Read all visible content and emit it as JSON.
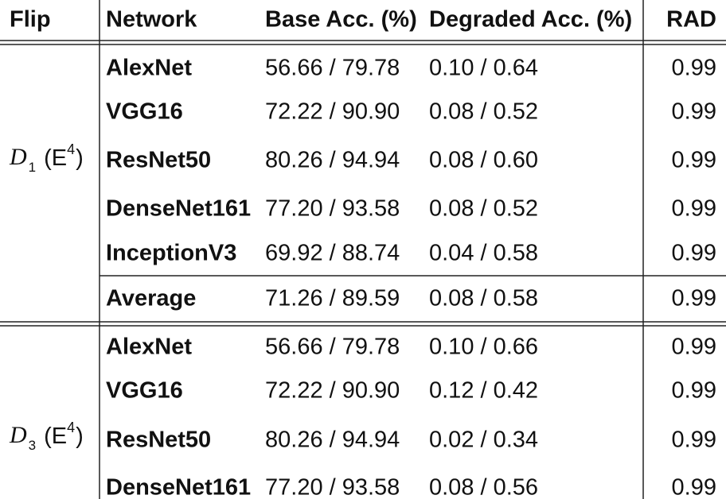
{
  "header": {
    "columns": [
      "Flip",
      "Network",
      "Base Acc. (%)",
      "Degraded Acc. (%)",
      "RAD"
    ]
  },
  "groups": [
    {
      "label": {
        "symbol": "D",
        "index": "1",
        "suffix_open": "(E",
        "suffix_power": "4",
        "suffix_close": ")"
      },
      "rows": [
        {
          "network": "AlexNet",
          "base": "56.66 / 79.78",
          "degraded": "0.10 / 0.64",
          "rad": "0.99"
        },
        {
          "network": "VGG16",
          "base": "72.22 / 90.90",
          "degraded": "0.08 / 0.52",
          "rad": "0.99"
        },
        {
          "network": "ResNet50",
          "base": "80.26 / 94.94",
          "degraded": "0.08 / 0.60",
          "rad": "0.99"
        },
        {
          "network": "DenseNet161",
          "base": "77.20 / 93.58",
          "degraded": "0.08 / 0.52",
          "rad": "0.99"
        },
        {
          "network": "InceptionV3",
          "base": "69.92 / 88.74",
          "degraded": "0.04 / 0.58",
          "rad": "0.99"
        }
      ],
      "average": {
        "network": "Average",
        "base": "71.26 / 89.59",
        "degraded": "0.08 / 0.58",
        "rad": "0.99"
      }
    },
    {
      "label": {
        "symbol": "D",
        "index": "3",
        "suffix_open": "(E",
        "suffix_power": "4",
        "suffix_close": ")"
      },
      "rows": [
        {
          "network": "AlexNet",
          "base": "56.66 / 79.78",
          "degraded": "0.10 / 0.66",
          "rad": "0.99"
        },
        {
          "network": "VGG16",
          "base": "72.22 / 90.90",
          "degraded": "0.12 / 0.42",
          "rad": "0.99"
        },
        {
          "network": "ResNet50",
          "base": "80.26 / 94.94",
          "degraded": "0.02 / 0.34",
          "rad": "0.99"
        },
        {
          "network": "DenseNet161",
          "base": "77.20 / 93.58",
          "degraded": "0.08 / 0.56",
          "rad": "0.99"
        }
      ]
    }
  ]
}
